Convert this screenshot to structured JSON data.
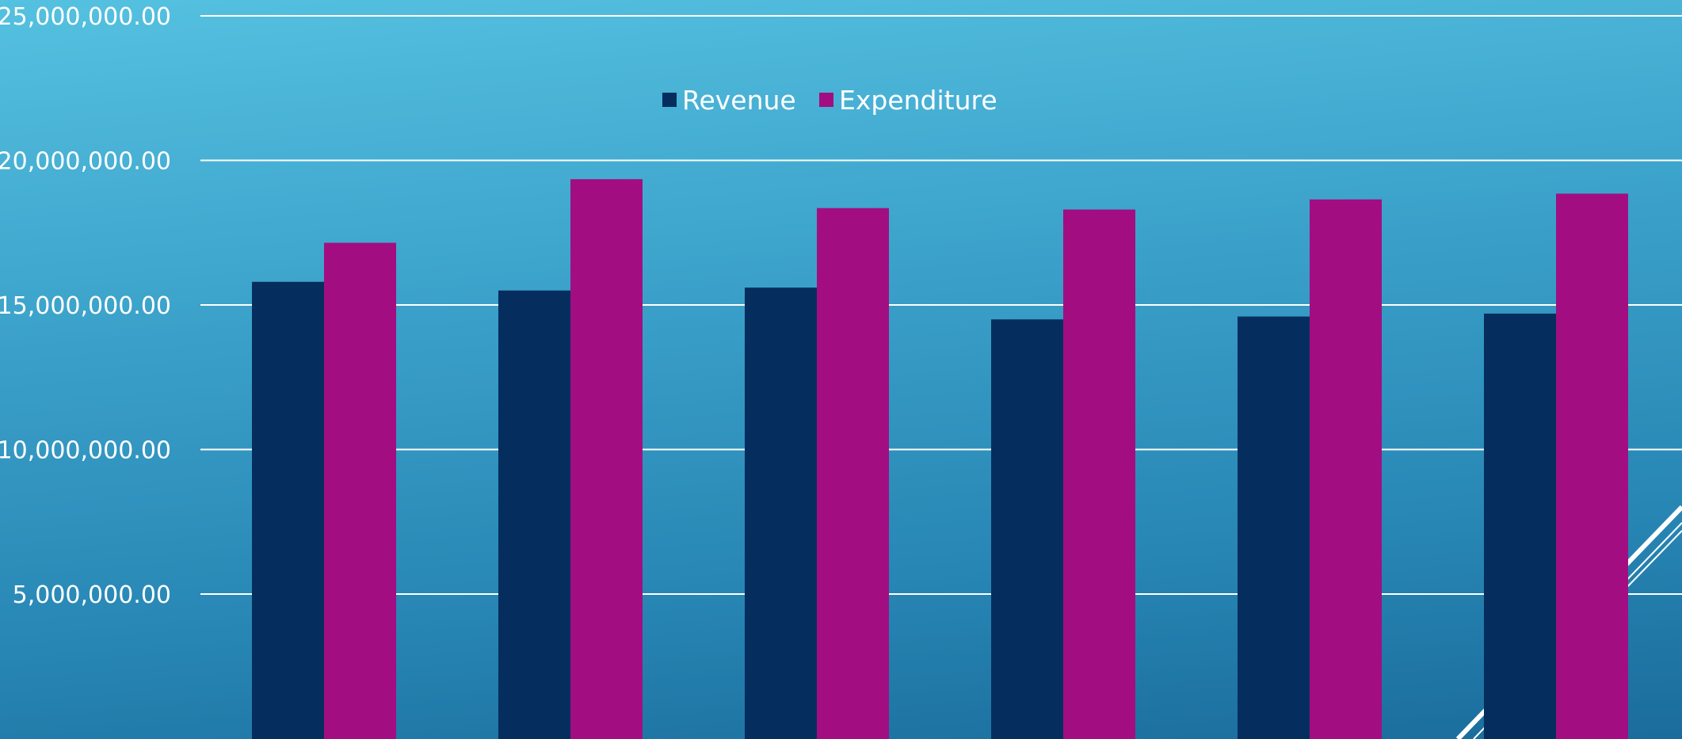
{
  "colors": {
    "revenue": "#052e5f",
    "expenditure": "#a20e81",
    "gridline": "#ffffff",
    "text": "#ffffff"
  },
  "chart_data": {
    "type": "bar",
    "legend_position": "top-center",
    "grid": true,
    "ylim": [
      0,
      25000000
    ],
    "ytick_labels": [
      "5,000,000.00",
      "10,000,000.00",
      "15,000,000.00",
      "20,000,000.00",
      "25,000,000.00"
    ],
    "ytick_values": [
      5000000,
      10000000,
      15000000,
      20000000,
      25000000
    ],
    "categories": [
      "",
      "",
      "",
      "",
      "",
      ""
    ],
    "series": [
      {
        "name": "Revenue",
        "values": [
          15800000,
          15500000,
          15600000,
          14500000,
          14600000,
          14700000
        ]
      },
      {
        "name": "Expenditure",
        "values": [
          17150000,
          19350000,
          18350000,
          18300000,
          18650000,
          18850000
        ]
      }
    ]
  }
}
